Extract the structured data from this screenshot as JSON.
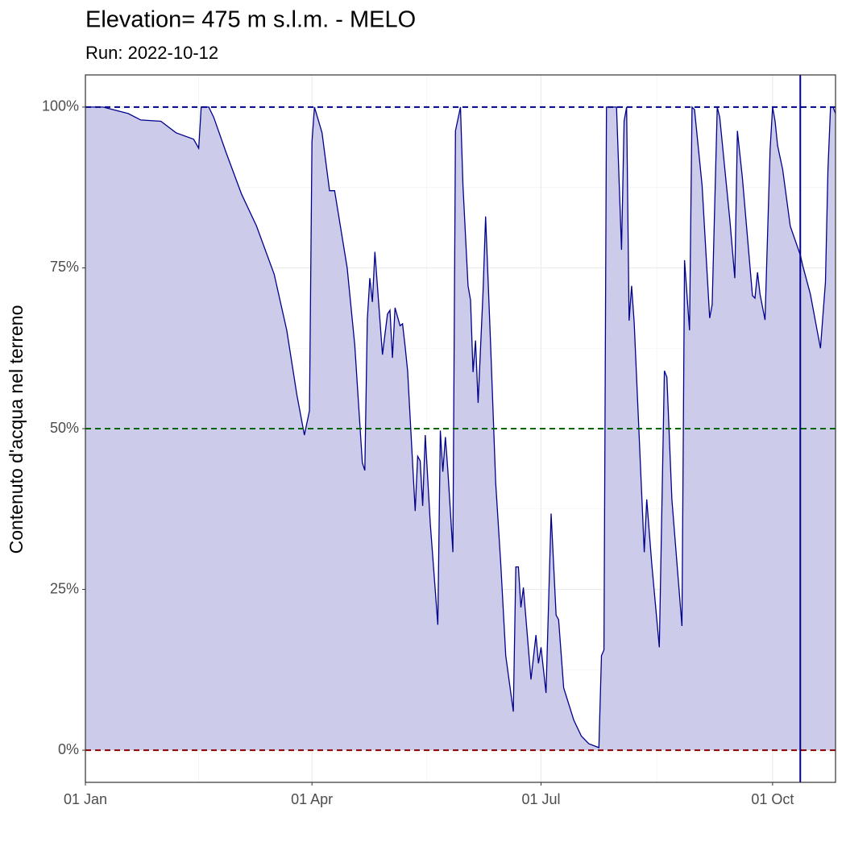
{
  "chart_data": {
    "type": "area",
    "title": "Elevation= 475 m s.l.m. - MELO",
    "subtitle": "Run: 2022-10-12",
    "y_label": "Contenuto d'acqua nel terreno",
    "x": [
      "01-01",
      "01-08",
      "01-18",
      "01-23",
      "01-31",
      "02-06",
      "02-13",
      "02-15",
      "02-16",
      "02-19",
      "02-21",
      "02-26",
      "03-04",
      "03-10",
      "03-17",
      "03-22",
      "03-26",
      "03-29",
      "03-31",
      "04-01",
      "04-02",
      "04-05",
      "04-08",
      "04-10",
      "04-15",
      "04-18",
      "04-21",
      "04-22",
      "04-23",
      "04-24",
      "04-25",
      "04-26",
      "04-29",
      "05-01",
      "05-02",
      "05-03",
      "05-04",
      "05-06",
      "05-07",
      "05-08",
      "05-09",
      "05-12",
      "05-13",
      "05-14",
      "05-15",
      "05-16",
      "05-18",
      "05-21",
      "05-22",
      "05-23",
      "05-24",
      "05-25",
      "05-27",
      "05-28",
      "05-30",
      "05-31",
      "06-02",
      "06-03",
      "06-04",
      "06-05",
      "06-06",
      "06-08",
      "06-09",
      "06-11",
      "06-13",
      "06-15",
      "06-17",
      "06-20",
      "06-21",
      "06-22",
      "06-23",
      "06-24",
      "06-27",
      "06-29",
      "06-30",
      "07-01",
      "07-03",
      "07-05",
      "07-07",
      "07-08",
      "07-10",
      "07-14",
      "07-17",
      "07-20",
      "07-24",
      "07-25",
      "07-26",
      "07-27",
      "07-31",
      "08-02",
      "08-03",
      "08-04",
      "08-05",
      "08-06",
      "08-07",
      "08-11",
      "08-12",
      "08-14",
      "08-17",
      "08-19",
      "08-20",
      "08-22",
      "08-26",
      "08-27",
      "08-29",
      "08-30",
      "08-31",
      "09-03",
      "09-06",
      "09-07",
      "09-09",
      "09-10",
      "09-14",
      "09-16",
      "09-17",
      "09-19",
      "09-23",
      "09-24",
      "09-25",
      "09-26",
      "09-28",
      "09-30",
      "10-01",
      "10-02",
      "10-03",
      "10-05",
      "10-08",
      "10-12",
      "10-13",
      "10-16",
      "10-20",
      "10-22",
      "10-23",
      "10-24",
      "10-25",
      "10-26"
    ],
    "series": [
      {
        "color": "#00008b",
        "fill": "#ccccea",
        "values": [
          100,
          100,
          99,
          98,
          97.8,
          96,
          95,
          93.6,
          100,
          100,
          98.4,
          92.8,
          86.5,
          81.5,
          74,
          65.3,
          55.3,
          49,
          52.8,
          94.6,
          100,
          96,
          87,
          87,
          75,
          63,
          44.7,
          43.5,
          67,
          73.4,
          69.7,
          77.5,
          61.5,
          67.8,
          68.4,
          61,
          68.8,
          66,
          66.3,
          62.8,
          59,
          37.2,
          45.7,
          45,
          38,
          49,
          35.3,
          19.5,
          49.7,
          43.3,
          48.7,
          43.4,
          30.8,
          96.3,
          100,
          87.8,
          72.2,
          70,
          58.8,
          63.7,
          54,
          71.5,
          83,
          62.8,
          41.6,
          29,
          14.7,
          6,
          28.5,
          28.5,
          22.2,
          25.3,
          11,
          17.9,
          13.5,
          16,
          8.9,
          36.8,
          21,
          20.3,
          9.7,
          4.7,
          2.2,
          1,
          0.4,
          14.7,
          15.6,
          100,
          100,
          77.8,
          97.8,
          100,
          66.8,
          72.2,
          66.5,
          30.8,
          39,
          29,
          16,
          59,
          58,
          39,
          19.3,
          76.2,
          65.3,
          100,
          99.6,
          87.8,
          67.2,
          69.3,
          100,
          98.4,
          82.5,
          73.4,
          96.3,
          89,
          70.7,
          70.3,
          74.3,
          70.9,
          66.9,
          93.4,
          100,
          97.8,
          94,
          90.3,
          81.5,
          77,
          75.3,
          70.9,
          62.5,
          72.8,
          90.3,
          100,
          100,
          99
        ]
      }
    ],
    "xlim": [
      "01-01",
      "10-26"
    ],
    "xticks": [
      {
        "value": "01-01",
        "label": "01 Jan"
      },
      {
        "value": "04-01",
        "label": "01 Apr"
      },
      {
        "value": "07-01",
        "label": "01 Jul"
      },
      {
        "value": "10-01",
        "label": "01 Oct"
      }
    ],
    "ylim": [
      -5,
      105
    ],
    "yticks": [
      {
        "value": 0,
        "label": "0%"
      },
      {
        "value": 25,
        "label": "25%"
      },
      {
        "value": 50,
        "label": "50%"
      },
      {
        "value": 75,
        "label": "75%"
      },
      {
        "value": 100,
        "label": "100%"
      }
    ],
    "hlines": [
      {
        "value": 100,
        "color": "#00008b"
      },
      {
        "value": 50,
        "color": "#006400"
      },
      {
        "value": 0,
        "color": "#8b0000"
      }
    ],
    "vline": {
      "value": "10-12",
      "color": "#00008b"
    },
    "grid": true
  }
}
